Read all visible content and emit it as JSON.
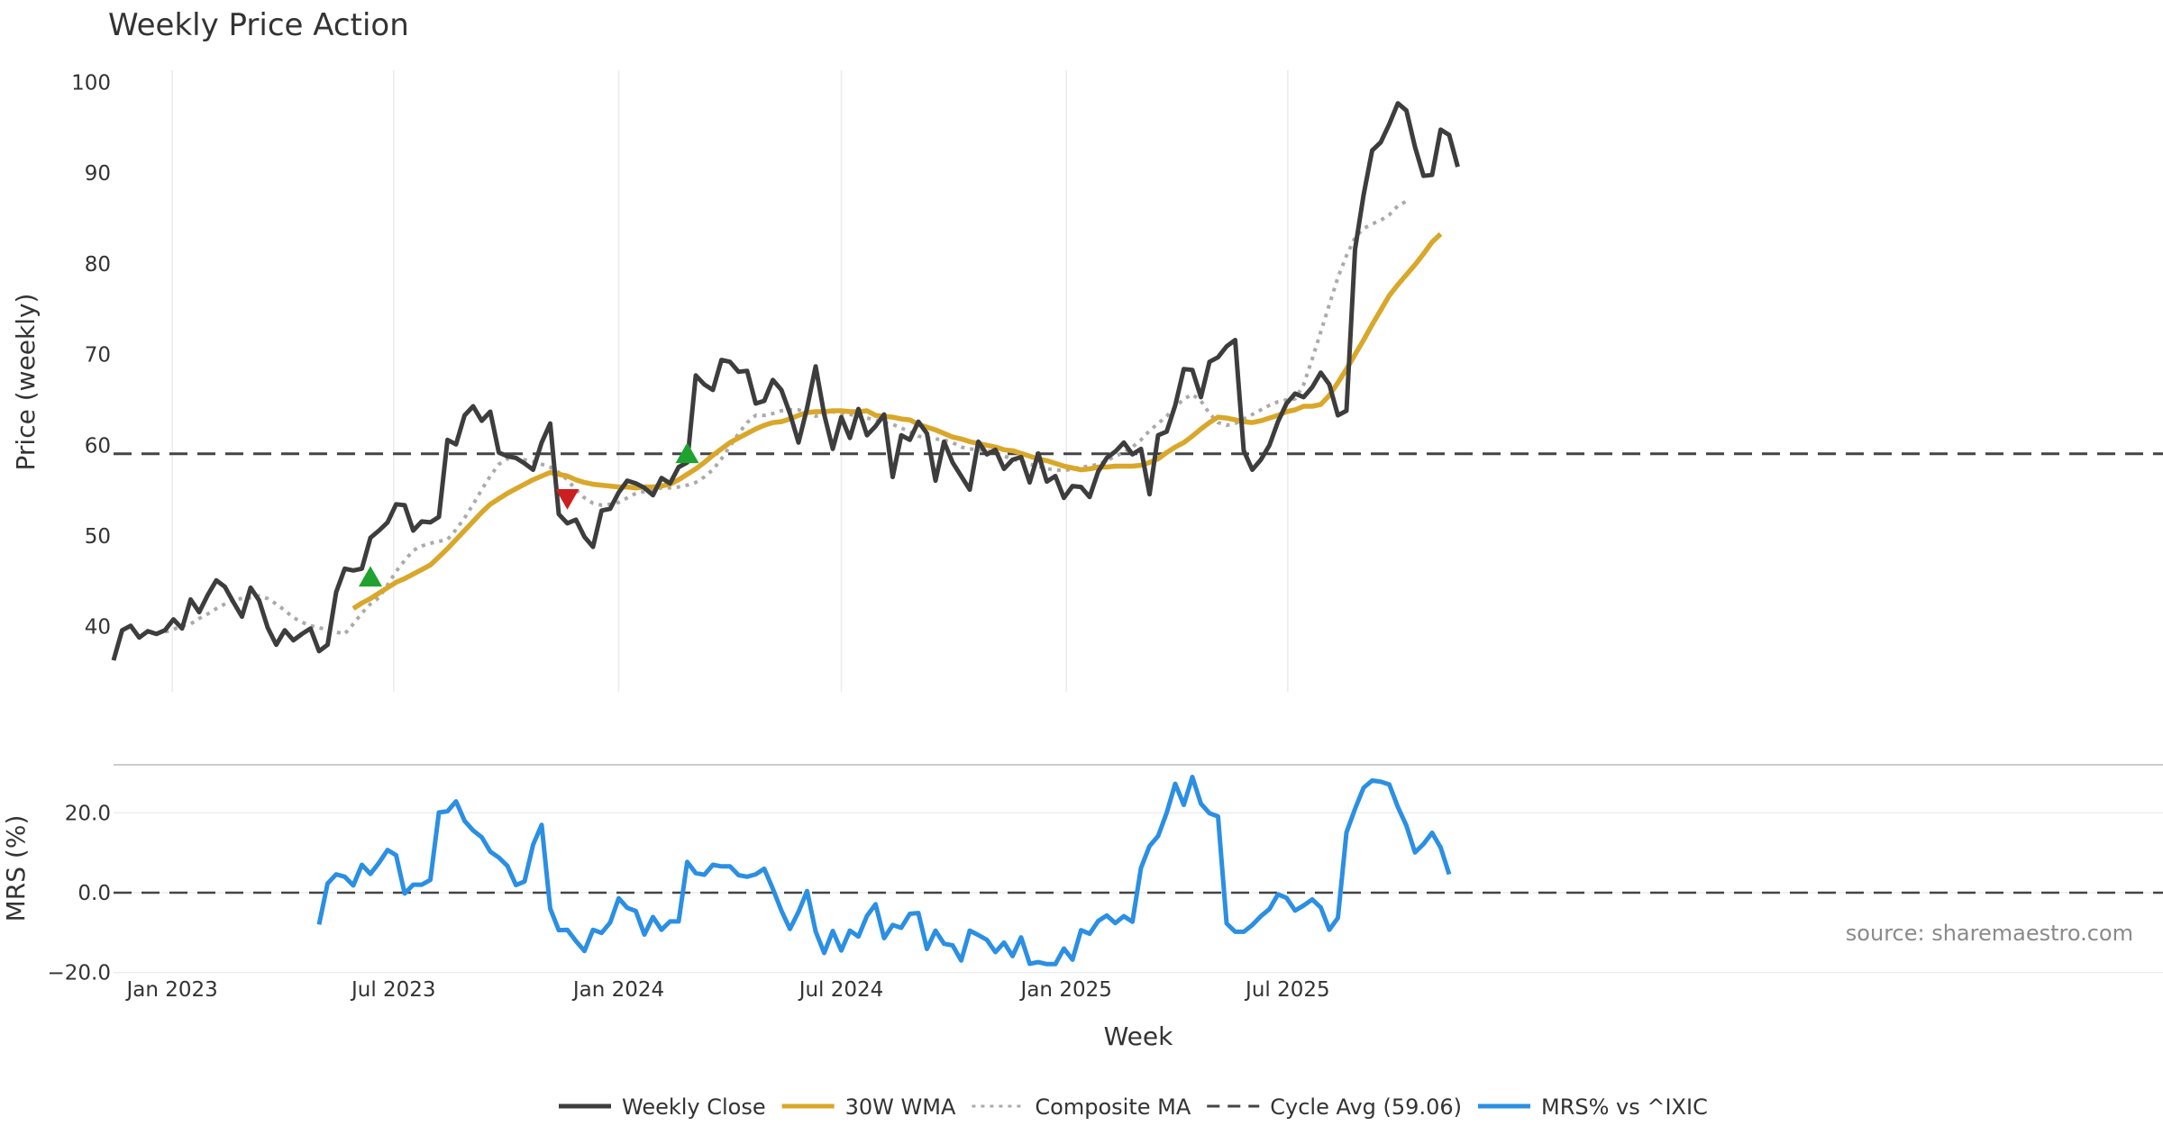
{
  "chart_data": [
    {
      "type": "line",
      "title": "Weekly Price Action",
      "ylabel": "Price (weekly)",
      "ylim": [
        33,
        101
      ],
      "yticks": [
        40,
        50,
        60,
        70,
        80,
        90,
        100
      ],
      "xticks": [
        "Jan 2023",
        "Jul 2023",
        "Jan 2024",
        "Jul 2024",
        "Jan 2025",
        "Jul 2025"
      ],
      "weeks_start": "2022-11-14",
      "cycle_avg": 59.06,
      "series": [
        {
          "name": "Weekly Close",
          "color": "#3d3d3d",
          "start_index": 0,
          "values": [
            36.3,
            39.6,
            40.1,
            38.8,
            39.5,
            39.2,
            39.6,
            40.8,
            39.8,
            43.0,
            41.6,
            43.5,
            45.1,
            44.4,
            42.7,
            41.1,
            44.3,
            42.9,
            39.9,
            38.0,
            39.6,
            38.5,
            39.2,
            39.8,
            37.3,
            38.0,
            43.8,
            46.4,
            46.2,
            46.4,
            49.8,
            50.6,
            51.5,
            53.5,
            53.4,
            50.6,
            51.6,
            51.5,
            52.1,
            60.6,
            60.1,
            63.3,
            64.3,
            62.7,
            63.7,
            59.2,
            58.8,
            58.6,
            58.0,
            57.3,
            60.3,
            62.4,
            52.4,
            51.4,
            51.8,
            49.9,
            48.8,
            52.8,
            53.0,
            54.8,
            56.1,
            55.8,
            55.3,
            54.5,
            56.4,
            55.8,
            57.6,
            58.1,
            67.7,
            66.7,
            66.1,
            69.4,
            69.2,
            68.1,
            68.2,
            64.6,
            64.9,
            67.2,
            66.1,
            63.5,
            60.3,
            64.1,
            68.7,
            63.4,
            59.6,
            63.1,
            60.8,
            64.0,
            61.1,
            62.1,
            63.4,
            56.5,
            61.1,
            60.6,
            62.6,
            61.3,
            56.1,
            60.4,
            58.1,
            56.6,
            55.1,
            60.4,
            59.0,
            59.5,
            57.4,
            58.4,
            58.7,
            55.9,
            59.1,
            56.0,
            56.6,
            54.2,
            55.5,
            55.4,
            54.3,
            57.1,
            58.6,
            59.3,
            60.3,
            59.0,
            59.6,
            54.6,
            61.1,
            61.5,
            64.4,
            68.4,
            68.3,
            65.3,
            69.2,
            69.7,
            70.9,
            71.6,
            59.4,
            57.3,
            58.4,
            60.0,
            62.6,
            64.6,
            65.7,
            65.3,
            66.4,
            68.0,
            66.7,
            63.3,
            63.8,
            81.6,
            87.6,
            92.5,
            93.4,
            95.4,
            97.7,
            96.9,
            92.9,
            89.7,
            89.8,
            94.8,
            94.2,
            90.7
          ]
        },
        {
          "name": "30W WMA",
          "color": "#d9a72a",
          "start_index": 28,
          "values": [
            42.0,
            42.6,
            43.1,
            43.7,
            44.3,
            44.9,
            45.3,
            45.8,
            46.3,
            46.8,
            47.7,
            48.6,
            49.6,
            50.6,
            51.6,
            52.6,
            53.5,
            54.1,
            54.7,
            55.2,
            55.7,
            56.2,
            56.6,
            57.0,
            56.8,
            56.6,
            56.2,
            55.9,
            55.7,
            55.6,
            55.5,
            55.4,
            55.4,
            55.3,
            55.4,
            55.4,
            55.5,
            55.7,
            56.2,
            56.8,
            57.4,
            58.1,
            58.9,
            59.6,
            60.3,
            60.8,
            61.3,
            61.8,
            62.2,
            62.5,
            62.6,
            62.9,
            63.3,
            63.6,
            63.7,
            63.7,
            63.8,
            63.8,
            63.7,
            63.7,
            63.8,
            63.3,
            63.2,
            63.1,
            62.9,
            62.8,
            62.3,
            62.0,
            61.7,
            61.3,
            60.9,
            60.7,
            60.4,
            60.2,
            60.0,
            59.8,
            59.5,
            59.4,
            59.1,
            58.8,
            58.5,
            58.3,
            58.0,
            57.7,
            57.5,
            57.3,
            57.4,
            57.6,
            57.6,
            57.7,
            57.7,
            57.7,
            57.8,
            58.1,
            58.5,
            59.2,
            59.8,
            60.3,
            61.0,
            61.8,
            62.5,
            63.1,
            63.0,
            62.8,
            62.6,
            62.5,
            62.7,
            63.0,
            63.3,
            63.7,
            63.9,
            64.3,
            64.3,
            64.5,
            65.5,
            66.9,
            68.4,
            70.0,
            71.6,
            73.3,
            74.9,
            76.5,
            77.7,
            78.8,
            79.9,
            81.1,
            82.4,
            83.3
          ]
        },
        {
          "name": "Composite MA",
          "color": "#aaaaaa",
          "start_index": 5,
          "values": [
            39.3,
            39.4,
            39.7,
            40.1,
            40.3,
            40.9,
            41.4,
            42.0,
            42.5,
            43.0,
            43.1,
            43.2,
            43.4,
            43.1,
            42.5,
            41.8,
            41.0,
            40.5,
            40.1,
            39.9,
            39.6,
            39.4,
            39.2,
            40.3,
            41.5,
            42.5,
            43.2,
            44.6,
            46.1,
            47.3,
            48.4,
            48.9,
            49.2,
            49.4,
            49.6,
            50.7,
            52.0,
            53.5,
            55.1,
            56.6,
            57.9,
            58.5,
            58.6,
            58.4,
            58.2,
            57.9,
            57.6,
            57.0,
            56.2,
            55.1,
            54.2,
            53.6,
            53.4,
            53.5,
            53.7,
            54.2,
            54.7,
            54.9,
            55.1,
            55.3,
            55.3,
            55.4,
            55.6,
            55.9,
            56.5,
            57.3,
            58.5,
            59.9,
            61.3,
            62.5,
            63.3,
            63.3,
            63.5,
            63.8,
            63.9,
            63.9,
            63.6,
            63.2,
            63.4,
            63.7,
            63.5,
            63.4,
            63.2,
            63.0,
            62.8,
            62.5,
            62.3,
            61.9,
            61.5,
            61.0,
            60.8,
            60.7,
            60.6,
            60.3,
            59.8,
            59.6,
            59.5,
            59.4,
            59.2,
            58.8,
            58.5,
            58.2,
            57.9,
            57.7,
            57.4,
            57.3,
            57.2,
            57.4,
            57.6,
            57.7,
            57.9,
            58.3,
            58.8,
            59.2,
            59.8,
            60.6,
            61.6,
            62.4,
            63.2,
            64.2,
            65.1,
            65.6,
            64.9,
            63.5,
            62.5,
            62.2,
            62.4,
            62.9,
            63.4,
            63.9,
            64.4,
            64.8,
            65.0,
            65.1,
            66.7,
            69.5,
            72.5,
            75.5,
            78.5,
            80.9,
            82.9,
            83.9,
            84.4,
            84.8,
            85.4,
            86.4,
            86.9
          ]
        }
      ],
      "markers": [
        {
          "type": "buy",
          "symbol": "▲",
          "color": "#1fa22f",
          "week_index": 30,
          "value": 45.4
        },
        {
          "type": "sell",
          "symbol": "▼",
          "color": "#cc1f1f",
          "week_index": 53,
          "value": 54.2
        },
        {
          "type": "buy",
          "symbol": "▲",
          "color": "#1fa22f",
          "week_index": 67,
          "value": 59.0
        }
      ]
    },
    {
      "type": "line",
      "ylabel": "MRS (%)",
      "xlabel": "Week",
      "ylim": [
        -20.0,
        31.0
      ],
      "yticks": [
        "20.0",
        "0.0",
        "−20.0"
      ],
      "ytick_values": [
        20,
        0,
        -20
      ],
      "xticks": [
        "Jan 2023",
        "Jul 2023",
        "Jan 2024",
        "Jul 2024",
        "Jan 2025",
        "Jul 2025"
      ],
      "zero_line": 0,
      "series": [
        {
          "name": "MRS% vs ^IXIC",
          "color": "#2b8fe3",
          "start_index": 24,
          "values": [
            -8.0,
            2.3,
            4.6,
            4.0,
            1.8,
            7.0,
            4.7,
            7.5,
            10.7,
            9.4,
            -0.2,
            2.0,
            2.0,
            3.2,
            20.1,
            20.4,
            22.9,
            18.0,
            15.6,
            13.9,
            10.3,
            8.8,
            6.7,
            1.9,
            2.8,
            12.0,
            17.0,
            -4.0,
            -9.4,
            -9.3,
            -12.1,
            -14.6,
            -9.3,
            -10.1,
            -7.5,
            -1.4,
            -3.8,
            -4.6,
            -10.5,
            -6.1,
            -9.3,
            -7.2,
            -7.2,
            7.7,
            4.9,
            4.5,
            7.0,
            6.6,
            6.6,
            4.4,
            4.0,
            4.6,
            6.0,
            1.0,
            -4.5,
            -9.1,
            -4.8,
            0.4,
            -9.7,
            -15.1,
            -9.6,
            -14.5,
            -9.5,
            -11.0,
            -5.8,
            -2.9,
            -11.4,
            -8.1,
            -8.8,
            -5.3,
            -5.1,
            -14.1,
            -9.5,
            -12.8,
            -13.2,
            -17.0,
            -9.5,
            -10.6,
            -11.8,
            -14.9,
            -12.5,
            -15.9,
            -11.2,
            -17.8,
            -17.4,
            -17.9,
            -17.9,
            -14.0,
            -16.8,
            -9.4,
            -10.3,
            -7.1,
            -5.7,
            -7.6,
            -5.9,
            -7.3,
            6.2,
            11.7,
            14.2,
            20.0,
            27.3,
            22.0,
            29.0,
            22.3,
            19.9,
            19.1,
            -7.7,
            -9.8,
            -9.8,
            -8.1,
            -5.9,
            -4.1,
            -0.4,
            -1.3,
            -4.5,
            -3.2,
            -1.7,
            -3.7,
            -9.3,
            -6.3,
            15.1,
            21.0,
            26.3,
            28.1,
            27.8,
            27.1,
            21.5,
            16.8,
            10.1,
            12.2,
            15.0,
            11.3,
            4.6
          ]
        }
      ]
    }
  ],
  "source_note": "source: sharemaestro.com",
  "legend": [
    {
      "label": "Weekly Close",
      "style": "solid",
      "color": "#3d3d3d"
    },
    {
      "label": "30W WMA",
      "style": "solid",
      "color": "#d9a72a"
    },
    {
      "label": "Composite MA",
      "style": "dotted",
      "color": "#aaaaaa"
    },
    {
      "label": "Cycle Avg (59.06)",
      "style": "dashed",
      "color": "#444444"
    },
    {
      "label": "MRS% vs ^IXIC",
      "style": "solid",
      "color": "#2b8fe3"
    }
  ]
}
